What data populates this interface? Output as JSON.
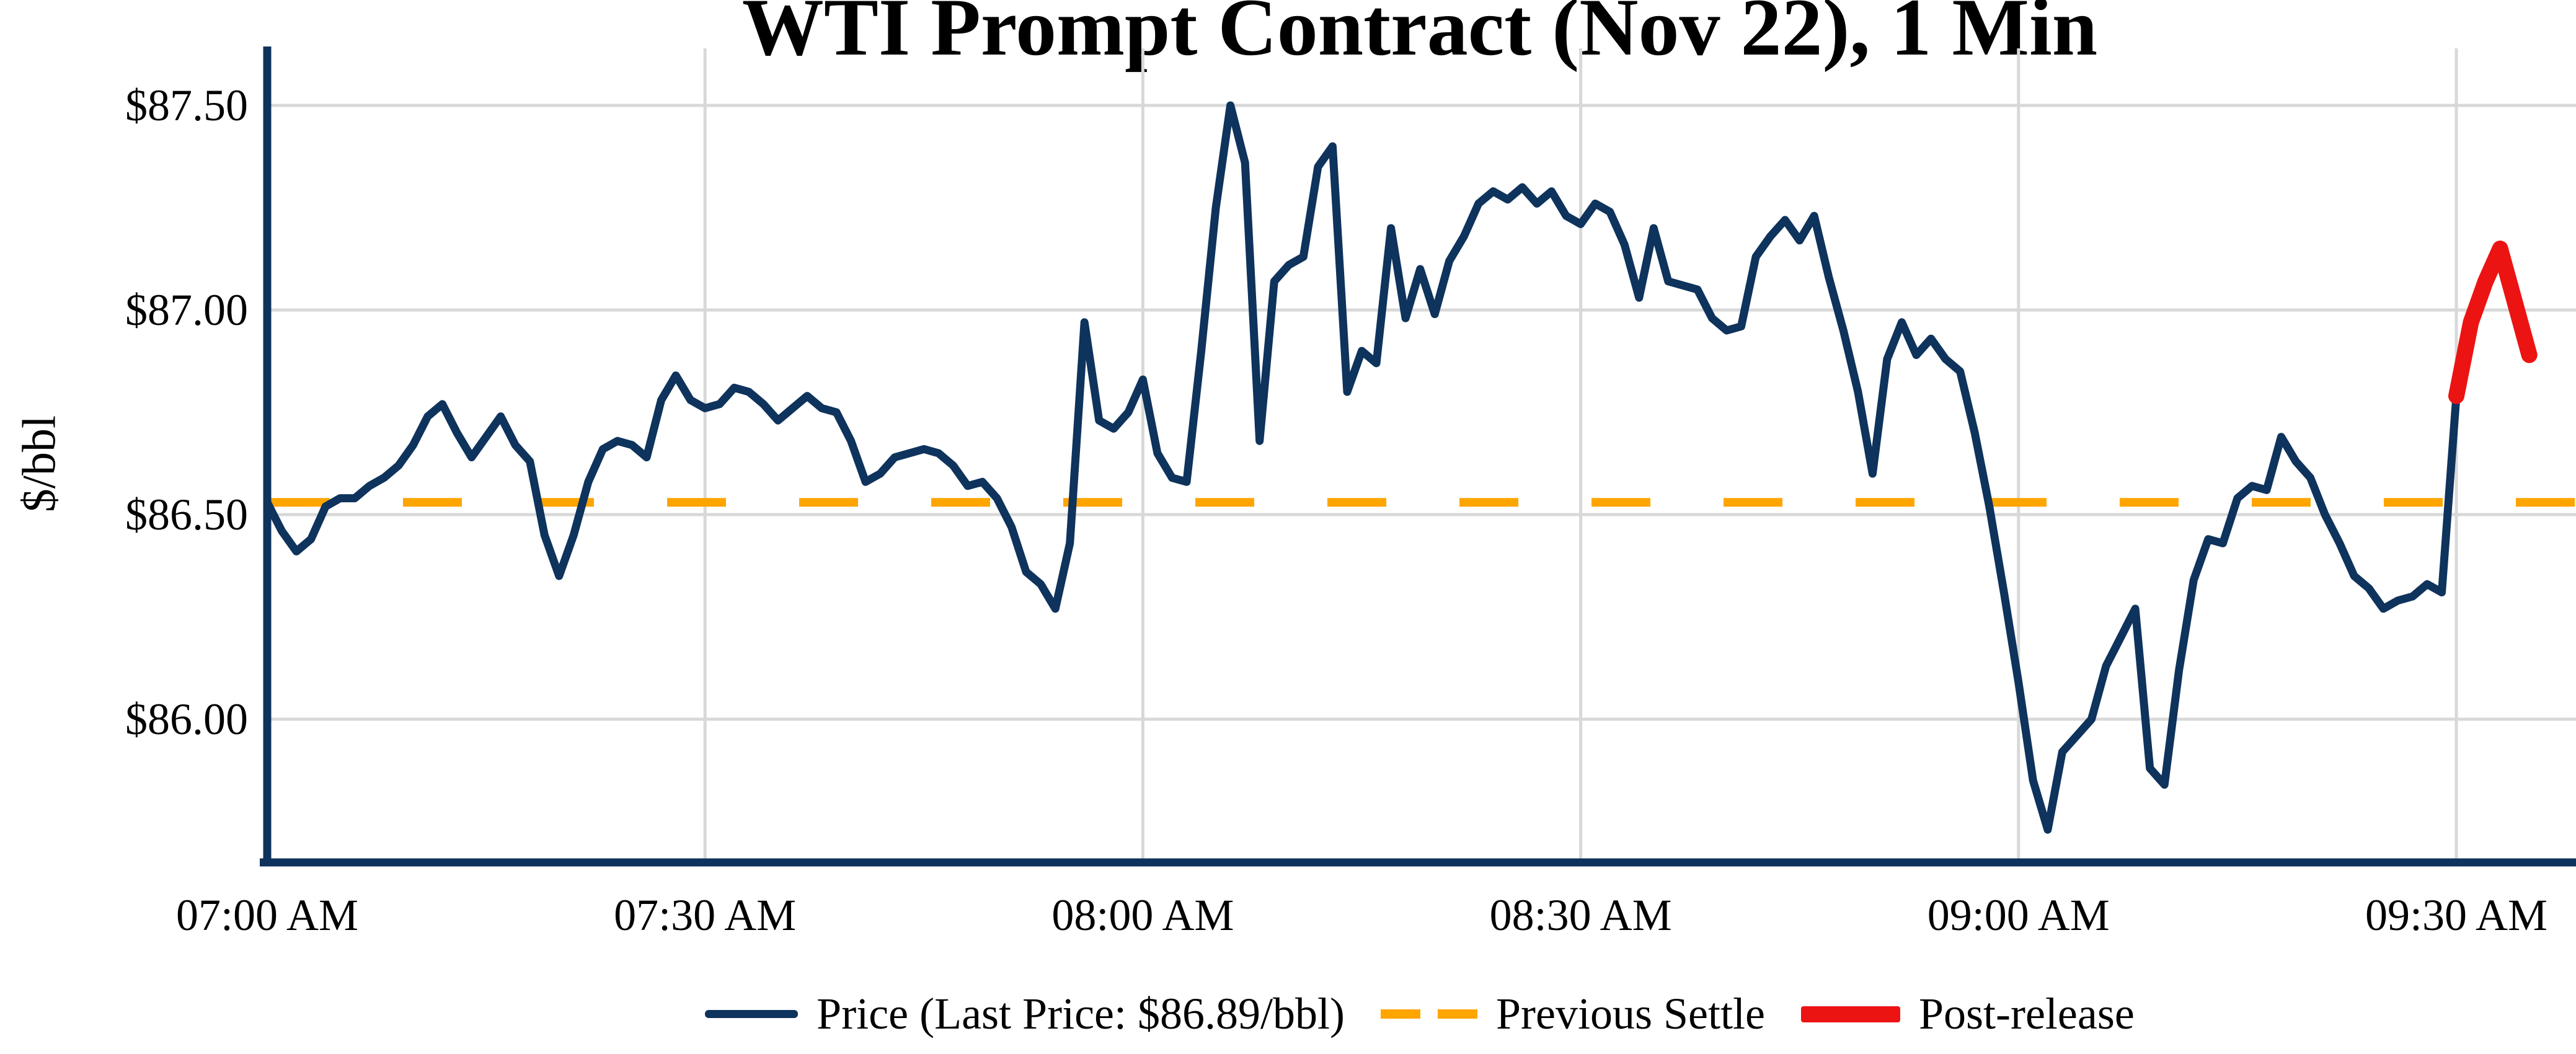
{
  "chart_data": {
    "type": "line",
    "title": "WTI Prompt Contract (Nov 22), 1 Min",
    "ylabel": "$/bbl",
    "start_time": "07:00 AM",
    "interval_minutes": 1,
    "x_ticks": [
      {
        "label": "07:00 AM",
        "minute": 0
      },
      {
        "label": "07:30 AM",
        "minute": 30
      },
      {
        "label": "08:00 AM",
        "minute": 60
      },
      {
        "label": "08:30 AM",
        "minute": 90
      },
      {
        "label": "09:00 AM",
        "minute": 120
      },
      {
        "label": "09:30 AM",
        "minute": 150
      }
    ],
    "y_ticks": [
      {
        "label": "$87.50",
        "value": 87.5
      },
      {
        "label": "$87.00",
        "value": 87.0
      },
      {
        "label": "$86.50",
        "value": 86.5
      },
      {
        "label": "$86.00",
        "value": 86.0
      }
    ],
    "ylim": [
      85.64,
      87.7
    ],
    "xlim_minutes": [
      0,
      158
    ],
    "previous_settle": 86.53,
    "last_price": 86.89,
    "post_release_start_index": 150,
    "price_values": [
      86.53,
      86.46,
      86.41,
      86.44,
      86.52,
      86.54,
      86.54,
      86.57,
      86.59,
      86.62,
      86.67,
      86.74,
      86.77,
      86.7,
      86.64,
      86.69,
      86.74,
      86.67,
      86.63,
      86.45,
      86.35,
      86.45,
      86.58,
      86.66,
      86.68,
      86.67,
      86.64,
      86.78,
      86.84,
      86.78,
      86.76,
      86.77,
      86.81,
      86.8,
      86.77,
      86.73,
      86.76,
      86.79,
      86.76,
      86.75,
      86.68,
      86.58,
      86.6,
      86.64,
      86.65,
      86.66,
      86.65,
      86.62,
      86.57,
      86.58,
      86.54,
      86.47,
      86.36,
      86.33,
      86.27,
      86.43,
      86.97,
      86.73,
      86.71,
      86.75,
      86.83,
      86.65,
      86.59,
      86.58,
      86.9,
      87.25,
      87.5,
      87.36,
      86.68,
      87.07,
      87.11,
      87.13,
      87.35,
      87.4,
      86.8,
      86.9,
      86.87,
      87.2,
      86.98,
      87.1,
      86.99,
      87.12,
      87.18,
      87.26,
      87.29,
      87.27,
      87.3,
      87.26,
      87.29,
      87.23,
      87.21,
      87.26,
      87.24,
      87.16,
      87.03,
      87.2,
      87.07,
      87.06,
      87.05,
      86.98,
      86.95,
      86.96,
      87.13,
      87.18,
      87.22,
      87.17,
      87.23,
      87.08,
      86.95,
      86.8,
      86.6,
      86.88,
      86.97,
      86.89,
      86.93,
      86.88,
      86.85,
      86.7,
      86.52,
      86.31,
      86.09,
      85.85,
      85.73,
      85.92,
      85.96,
      86.0,
      86.13,
      86.2,
      86.27,
      85.88,
      85.84,
      86.12,
      86.34,
      86.44,
      86.43,
      86.54,
      86.57,
      86.56,
      86.69,
      86.63,
      86.59,
      86.5,
      86.43,
      86.35,
      86.32,
      86.27,
      86.29,
      86.3,
      86.33,
      86.31,
      86.79,
      86.97,
      87.07,
      87.15,
      87.02,
      86.89
    ]
  },
  "legend": {
    "price_label": "Price (Last Price: $86.89/bbl)",
    "settle_label": "Previous Settle",
    "post_label": "Post-release"
  },
  "colors": {
    "price": "#0e335c",
    "post_release": "#ec1313",
    "settle": "#ffa500",
    "grid": "#d8d8d8",
    "axis": "#0e335c",
    "text": "#000000",
    "background": "#ffffff"
  }
}
